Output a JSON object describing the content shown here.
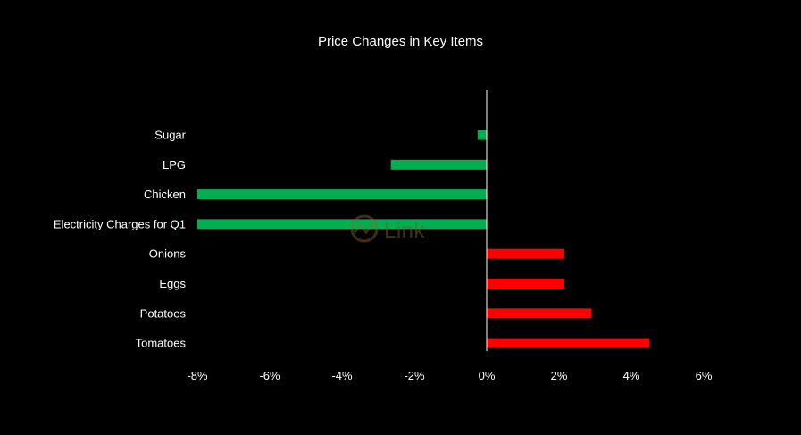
{
  "chart_data": {
    "type": "bar",
    "orientation": "horizontal",
    "title": "Price Changes in Key Items",
    "categories": [
      "Sugar",
      "LPG",
      "Chicken",
      "Electricity Charges for Q1",
      "Onions",
      "Eggs",
      "Potatoes",
      "Tomatoes"
    ],
    "values": [
      -0.25,
      -2.65,
      -8.0,
      -8.0,
      2.15,
      2.15,
      2.9,
      4.5
    ],
    "value_unit": "%",
    "xlim": [
      -8,
      6
    ],
    "xticks": [
      "-8%",
      "-6%",
      "-4%",
      "-2%",
      "0%",
      "2%",
      "4%",
      "6%"
    ],
    "xtick_values": [
      -8,
      -6,
      -4,
      -2,
      0,
      2,
      4,
      6
    ],
    "grid": false,
    "legend": "none",
    "colors": {
      "negative": "#00b050",
      "positive": "#ff0000",
      "background": "#000000",
      "axis": "#ffffff"
    }
  },
  "watermark": {
    "text": "Link"
  }
}
